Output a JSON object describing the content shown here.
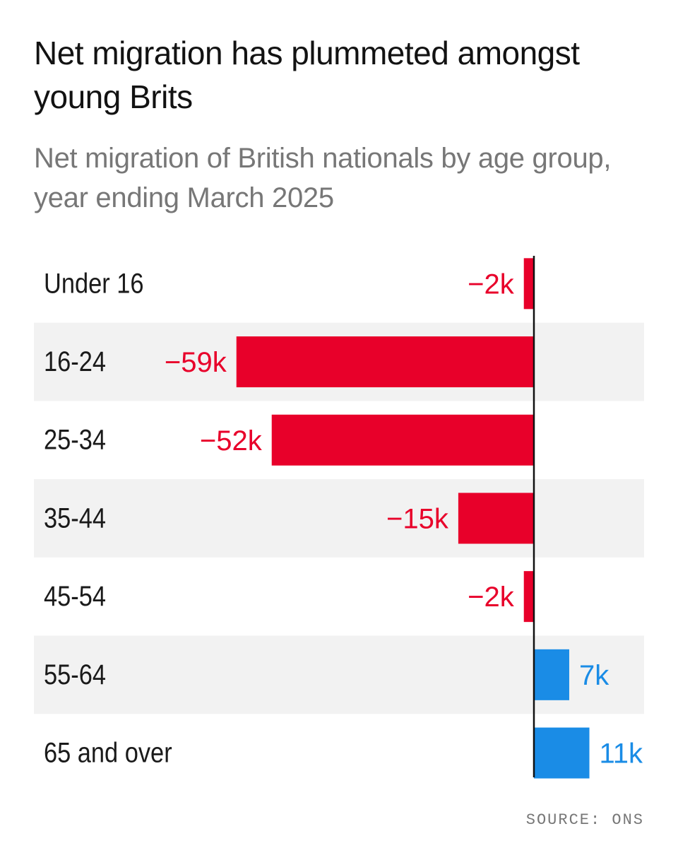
{
  "header": {
    "title": "Net migration has plummeted amongst young Brits",
    "subtitle": "Net migration of British nationals by age group, year ending March 2025"
  },
  "footer": {
    "source": "SOURCE: ONS"
  },
  "colors": {
    "negative": "#e8002a",
    "positive": "#1a8ce6",
    "stripe": "#f2f2f2",
    "axis": "#111111",
    "category_text": "#1a1a1a"
  },
  "chart_data": {
    "type": "bar",
    "orientation": "horizontal",
    "title": "Net migration has plummeted amongst young Brits",
    "subtitle": "Net migration of British nationals by age group, year ending March 2025",
    "categories": [
      "Under 16",
      "16-24",
      "25-34",
      "35-44",
      "45-54",
      "55-64",
      "65 and over"
    ],
    "values": [
      -2,
      -59,
      -52,
      -15,
      -2,
      7,
      11
    ],
    "value_labels": [
      "−2k",
      "−59k",
      "−52k",
      "−15k",
      "−2k",
      "7k",
      "11k"
    ],
    "unit": "thousands",
    "xlabel": "",
    "ylabel": "",
    "grid": false,
    "source": "SOURCE: ONS"
  }
}
